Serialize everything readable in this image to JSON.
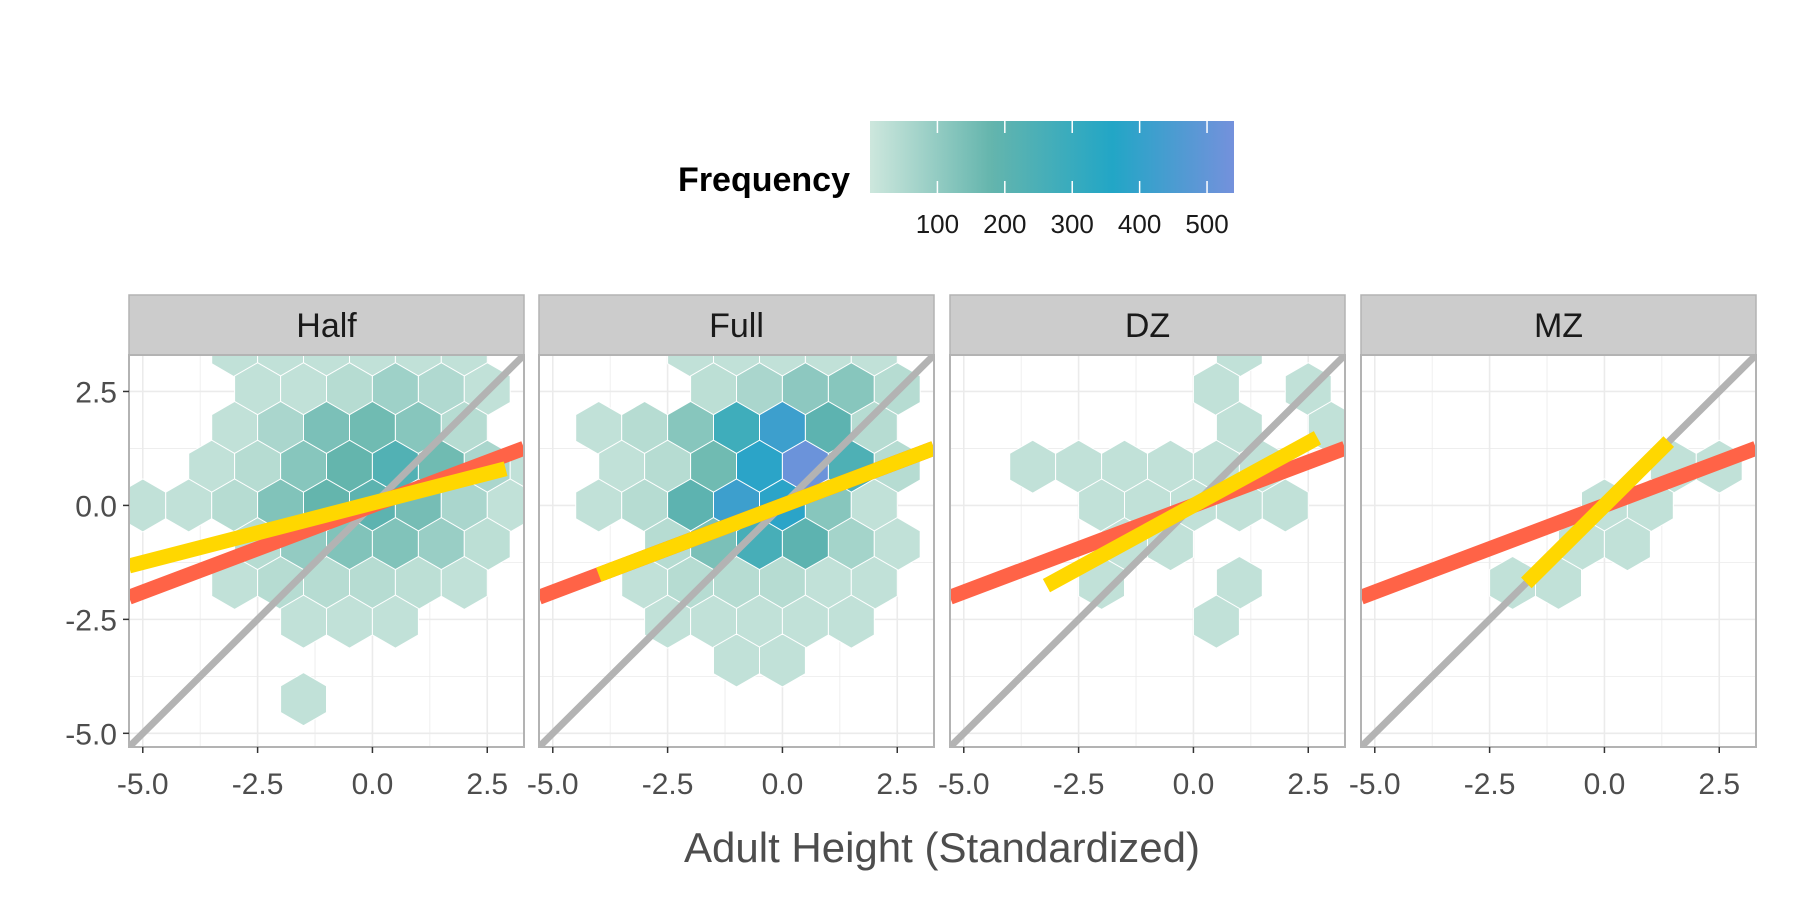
{
  "chart_data": {
    "type": "hexbin",
    "xlabel": "Adult Height (Standardized)",
    "ylabel": "",
    "xlim": [
      -5.3,
      3.3
    ],
    "ylim": [
      -5.3,
      3.3
    ],
    "x_ticks": [
      -5.0,
      -2.5,
      0.0,
      2.5
    ],
    "x_tick_labels": [
      "-5.0",
      "-2.5",
      "0.0",
      "2.5"
    ],
    "y_ticks": [
      2.5,
      0.0,
      -2.5,
      -5.0
    ],
    "y_tick_labels": [
      "2.5",
      "0.0",
      "-2.5",
      "-5.0"
    ],
    "legend": {
      "title": "Frequency",
      "position": "top",
      "range": [
        0,
        540
      ],
      "ticks": [
        100,
        200,
        300,
        400,
        500
      ],
      "tick_labels": [
        "100",
        "200",
        "300",
        "400",
        "500"
      ],
      "colors": [
        "#cde7dd",
        "#64b5ad",
        "#22a6c6",
        "#7491dc"
      ]
    },
    "colors": {
      "identity_line": "#b3b3b3",
      "regression_line": "#ff6347",
      "fit_line": "#ffd700",
      "strip": "#cccccc",
      "panel_border": "#b3b3b3",
      "grid": "#ebebeb"
    },
    "hex_layout": {
      "dx": 1.0,
      "dy": 0.85
    },
    "panels": [
      {
        "label": "Half",
        "regression_line": {
          "slope": 0.38,
          "intercept": 0.0
        },
        "fit_line": {
          "x": [
            -5.3,
            2.9
          ],
          "slope": 0.26,
          "intercept": 0.05
        },
        "hexes": [
          {
            "col": -3,
            "row": 4,
            "count": 20
          },
          {
            "col": -2,
            "row": 4,
            "count": 20
          },
          {
            "col": -1,
            "row": 4,
            "count": 20
          },
          {
            "col": 0,
            "row": 4,
            "count": 20
          },
          {
            "col": 1,
            "row": 4,
            "count": 20
          },
          {
            "col": 2,
            "row": 4,
            "count": 20
          },
          {
            "col": -3,
            "row": 3,
            "count": 20
          },
          {
            "col": -2,
            "row": 3,
            "count": 20
          },
          {
            "col": -1,
            "row": 3,
            "count": 40
          },
          {
            "col": 0,
            "row": 3,
            "count": 80
          },
          {
            "col": 1,
            "row": 3,
            "count": 50
          },
          {
            "col": 2,
            "row": 3,
            "count": 20
          },
          {
            "col": -3,
            "row": 2,
            "count": 20
          },
          {
            "col": -2,
            "row": 2,
            "count": 60
          },
          {
            "col": -1,
            "row": 2,
            "count": 140
          },
          {
            "col": 0,
            "row": 2,
            "count": 160
          },
          {
            "col": 1,
            "row": 2,
            "count": 120
          },
          {
            "col": 2,
            "row": 2,
            "count": 40
          },
          {
            "col": -4,
            "row": 1,
            "count": 20
          },
          {
            "col": -3,
            "row": 1,
            "count": 40
          },
          {
            "col": -2,
            "row": 1,
            "count": 120
          },
          {
            "col": -1,
            "row": 1,
            "count": 180
          },
          {
            "col": 0,
            "row": 1,
            "count": 230
          },
          {
            "col": 1,
            "row": 1,
            "count": 160
          },
          {
            "col": 2,
            "row": 1,
            "count": 60
          },
          {
            "col": 3,
            "row": 1,
            "count": 20
          },
          {
            "col": -5,
            "row": 0,
            "count": 20
          },
          {
            "col": -4,
            "row": 0,
            "count": 20
          },
          {
            "col": -3,
            "row": 0,
            "count": 40
          },
          {
            "col": -2,
            "row": 0,
            "count": 130
          },
          {
            "col": -1,
            "row": 0,
            "count": 180
          },
          {
            "col": 0,
            "row": 0,
            "count": 200
          },
          {
            "col": 1,
            "row": 0,
            "count": 150
          },
          {
            "col": 2,
            "row": 0,
            "count": 60
          },
          {
            "col": 3,
            "row": 0,
            "count": 20
          },
          {
            "col": -3,
            "row": -1,
            "count": 40
          },
          {
            "col": -2,
            "row": -1,
            "count": 100
          },
          {
            "col": -1,
            "row": -1,
            "count": 130
          },
          {
            "col": 0,
            "row": -1,
            "count": 130
          },
          {
            "col": 1,
            "row": -1,
            "count": 90
          },
          {
            "col": 2,
            "row": -1,
            "count": 30
          },
          {
            "col": -3,
            "row": -2,
            "count": 20
          },
          {
            "col": -2,
            "row": -2,
            "count": 40
          },
          {
            "col": -1,
            "row": -2,
            "count": 40
          },
          {
            "col": 0,
            "row": -2,
            "count": 40
          },
          {
            "col": 1,
            "row": -2,
            "count": 30
          },
          {
            "col": 2,
            "row": -2,
            "count": 20
          },
          {
            "col": -2,
            "row": -3,
            "count": 20
          },
          {
            "col": -1,
            "row": -3,
            "count": 20
          },
          {
            "col": 0,
            "row": -3,
            "count": 20
          },
          {
            "col": -2,
            "row": -5,
            "count": 20
          }
        ]
      },
      {
        "label": "Full",
        "regression_line": {
          "slope": 0.38,
          "intercept": 0.0
        },
        "fit_line": {
          "x": [
            -4.0,
            3.3
          ],
          "slope": 0.38,
          "intercept": 0.0
        },
        "hexes": [
          {
            "col": -2,
            "row": 4,
            "count": 20
          },
          {
            "col": -1,
            "row": 4,
            "count": 20
          },
          {
            "col": 0,
            "row": 4,
            "count": 20
          },
          {
            "col": 1,
            "row": 4,
            "count": 20
          },
          {
            "col": 2,
            "row": 4,
            "count": 20
          },
          {
            "col": -2,
            "row": 3,
            "count": 30
          },
          {
            "col": -1,
            "row": 3,
            "count": 60
          },
          {
            "col": 0,
            "row": 3,
            "count": 110
          },
          {
            "col": 1,
            "row": 3,
            "count": 120
          },
          {
            "col": 2,
            "row": 3,
            "count": 40
          },
          {
            "col": -4,
            "row": 2,
            "count": 20
          },
          {
            "col": -3,
            "row": 2,
            "count": 40
          },
          {
            "col": -2,
            "row": 2,
            "count": 120
          },
          {
            "col": -1,
            "row": 2,
            "count": 280
          },
          {
            "col": 0,
            "row": 2,
            "count": 420
          },
          {
            "col": 1,
            "row": 2,
            "count": 200
          },
          {
            "col": 2,
            "row": 2,
            "count": 40
          },
          {
            "col": -4,
            "row": 1,
            "count": 20
          },
          {
            "col": -3,
            "row": 1,
            "count": 40
          },
          {
            "col": -2,
            "row": 1,
            "count": 160
          },
          {
            "col": -1,
            "row": 1,
            "count": 380
          },
          {
            "col": 0,
            "row": 1,
            "count": 520
          },
          {
            "col": 1,
            "row": 1,
            "count": 240
          },
          {
            "col": 2,
            "row": 1,
            "count": 40
          },
          {
            "col": -4,
            "row": 0,
            "count": 20
          },
          {
            "col": -3,
            "row": 0,
            "count": 40
          },
          {
            "col": -2,
            "row": 0,
            "count": 200
          },
          {
            "col": -1,
            "row": 0,
            "count": 420
          },
          {
            "col": 0,
            "row": 0,
            "count": 380
          },
          {
            "col": 1,
            "row": 0,
            "count": 120
          },
          {
            "col": 2,
            "row": 0,
            "count": 20
          },
          {
            "col": -3,
            "row": -1,
            "count": 40
          },
          {
            "col": -2,
            "row": -1,
            "count": 140
          },
          {
            "col": -1,
            "row": -1,
            "count": 260
          },
          {
            "col": 0,
            "row": -1,
            "count": 200
          },
          {
            "col": 1,
            "row": -1,
            "count": 70
          },
          {
            "col": 2,
            "row": -1,
            "count": 20
          },
          {
            "col": -3,
            "row": -2,
            "count": 20
          },
          {
            "col": -2,
            "row": -2,
            "count": 40
          },
          {
            "col": -1,
            "row": -2,
            "count": 40
          },
          {
            "col": 0,
            "row": -2,
            "count": 40
          },
          {
            "col": 1,
            "row": -2,
            "count": 20
          },
          {
            "col": 2,
            "row": -2,
            "count": 20
          },
          {
            "col": -3,
            "row": -3,
            "count": 20
          },
          {
            "col": -2,
            "row": -3,
            "count": 20
          },
          {
            "col": -1,
            "row": -3,
            "count": 20
          },
          {
            "col": 0,
            "row": -3,
            "count": 20
          },
          {
            "col": 1,
            "row": -3,
            "count": 20
          },
          {
            "col": -1,
            "row": -4,
            "count": 20
          },
          {
            "col": 0,
            "row": -4,
            "count": 20
          }
        ]
      },
      {
        "label": "DZ",
        "regression_line": {
          "slope": 0.38,
          "intercept": 0.0
        },
        "fit_line": {
          "x": [
            -3.2,
            2.7
          ],
          "slope": 0.55,
          "intercept": 0.0
        },
        "hexes": [
          {
            "col": 1,
            "row": 4,
            "count": 20
          },
          {
            "col": 0,
            "row": 3,
            "count": 20
          },
          {
            "col": 2,
            "row": 3,
            "count": 20
          },
          {
            "col": 1,
            "row": 2,
            "count": 20
          },
          {
            "col": 3,
            "row": 2,
            "count": 20
          },
          {
            "col": -4,
            "row": 1,
            "count": 20
          },
          {
            "col": -3,
            "row": 1,
            "count": 20
          },
          {
            "col": -2,
            "row": 1,
            "count": 20
          },
          {
            "col": -1,
            "row": 1,
            "count": 20
          },
          {
            "col": 0,
            "row": 1,
            "count": 20
          },
          {
            "col": 1,
            "row": 1,
            "count": 20
          },
          {
            "col": -2,
            "row": 0,
            "count": 20
          },
          {
            "col": -1,
            "row": 0,
            "count": 20
          },
          {
            "col": 0,
            "row": 0,
            "count": 20
          },
          {
            "col": 1,
            "row": 0,
            "count": 20
          },
          {
            "col": 2,
            "row": 0,
            "count": 20
          },
          {
            "col": -2,
            "row": -1,
            "count": 20
          },
          {
            "col": -1,
            "row": -1,
            "count": 20
          },
          {
            "col": -2,
            "row": -2,
            "count": 20
          },
          {
            "col": 1,
            "row": -2,
            "count": 20
          },
          {
            "col": 0,
            "row": -3,
            "count": 20
          }
        ]
      },
      {
        "label": "MZ",
        "regression_line": {
          "slope": 0.38,
          "intercept": 0.0
        },
        "fit_line": {
          "x": [
            -1.7,
            1.4
          ],
          "slope": 1.0,
          "intercept": 0.0
        },
        "hexes": [
          {
            "col": 1,
            "row": 1,
            "count": 20
          },
          {
            "col": 2,
            "row": 1,
            "count": 20
          },
          {
            "col": 0,
            "row": 0,
            "count": 20
          },
          {
            "col": 1,
            "row": 0,
            "count": 20
          },
          {
            "col": -1,
            "row": -1,
            "count": 20
          },
          {
            "col": 0,
            "row": -1,
            "count": 20
          },
          {
            "col": -2,
            "row": -2,
            "count": 20
          },
          {
            "col": -1,
            "row": -2,
            "count": 20
          }
        ]
      }
    ]
  }
}
